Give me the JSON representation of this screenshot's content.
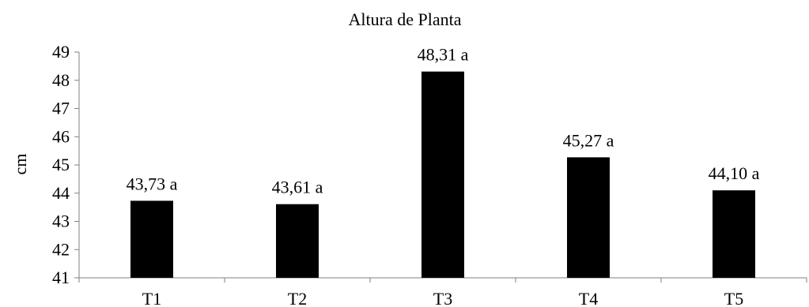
{
  "chart_data": {
    "type": "bar",
    "title": "Altura de Planta",
    "xlabel": "",
    "ylabel": "cm",
    "categories": [
      "T1",
      "T2",
      "T3",
      "T4",
      "T5"
    ],
    "values": [
      43.73,
      43.61,
      48.31,
      45.27,
      44.1
    ],
    "data_labels": [
      "43,73 a",
      "43,61 a",
      "48,31 a",
      "45,27 a",
      "44,10 a"
    ],
    "ylim": [
      41,
      49
    ],
    "yticks": [
      "41",
      "42",
      "43",
      "44",
      "45",
      "46",
      "47",
      "48",
      "49"
    ],
    "grid": false,
    "legend": "none",
    "bar_color": "#000000"
  }
}
